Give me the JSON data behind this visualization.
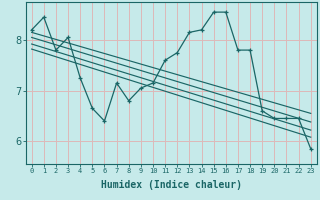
{
  "title": "",
  "xlabel": "Humidex (Indice chaleur)",
  "ylabel": "",
  "background_color": "#c6eaea",
  "line_color": "#1a6666",
  "grid_color": "#ddb8b8",
  "xlim": [
    -0.5,
    23.5
  ],
  "ylim": [
    5.55,
    8.75
  ],
  "yticks": [
    6,
    7,
    8
  ],
  "xticks": [
    0,
    1,
    2,
    3,
    4,
    5,
    6,
    7,
    8,
    9,
    10,
    11,
    12,
    13,
    14,
    15,
    16,
    17,
    18,
    19,
    20,
    21,
    22,
    23
  ],
  "data_x": [
    0,
    1,
    2,
    3,
    4,
    5,
    6,
    7,
    8,
    9,
    10,
    11,
    12,
    13,
    14,
    15,
    16,
    17,
    18,
    19,
    20,
    21,
    22,
    23
  ],
  "data_y": [
    8.2,
    8.45,
    7.8,
    8.05,
    7.25,
    6.65,
    6.4,
    7.15,
    6.8,
    7.05,
    7.15,
    7.6,
    7.75,
    8.15,
    8.2,
    8.55,
    8.55,
    7.8,
    7.8,
    6.6,
    6.45,
    6.45,
    6.45,
    5.85
  ],
  "trend_lines": [
    {
      "start_x": 0,
      "start_y": 8.15,
      "end_x": 23,
      "end_y": 6.55
    },
    {
      "start_x": 0,
      "start_y": 8.05,
      "end_x": 23,
      "end_y": 6.38
    },
    {
      "start_x": 0,
      "start_y": 7.92,
      "end_x": 23,
      "end_y": 6.22
    },
    {
      "start_x": 0,
      "start_y": 7.82,
      "end_x": 23,
      "end_y": 6.08
    }
  ],
  "xlabel_fontsize": 7,
  "xlabel_fontweight": "bold",
  "tick_fontsize_x": 5,
  "tick_fontsize_y": 7
}
